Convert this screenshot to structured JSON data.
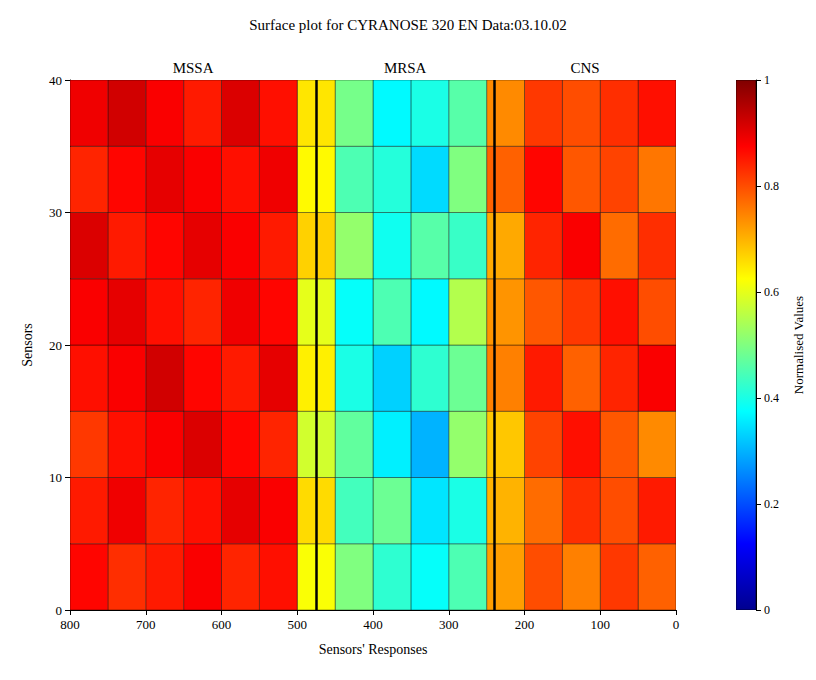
{
  "chart_data": {
    "type": "heatmap",
    "title": "Surface plot for CYRANOSE 320 EN Data:03.10.02",
    "x_label": "Sensors' Responses",
    "y_label": "Sensors",
    "x_bins": [
      0,
      50,
      100,
      150,
      200,
      250,
      300,
      350,
      400,
      450,
      500,
      550,
      600,
      650,
      700,
      750,
      800
    ],
    "y_bins": [
      0,
      5,
      10,
      15,
      20,
      25,
      30,
      35,
      40
    ],
    "values": [
      [
        0.78,
        0.82,
        0.75,
        0.8,
        0.72,
        0.45,
        0.38,
        0.42,
        0.5,
        0.62,
        0.86,
        0.84,
        0.88,
        0.85,
        0.83,
        0.87
      ],
      [
        0.85,
        0.8,
        0.83,
        0.77,
        0.7,
        0.4,
        0.35,
        0.48,
        0.44,
        0.66,
        0.88,
        0.9,
        0.86,
        0.84,
        0.89,
        0.85
      ],
      [
        0.74,
        0.79,
        0.86,
        0.81,
        0.68,
        0.52,
        0.3,
        0.36,
        0.47,
        0.58,
        0.84,
        0.87,
        0.91,
        0.88,
        0.86,
        0.82
      ],
      [
        0.88,
        0.84,
        0.78,
        0.85,
        0.75,
        0.48,
        0.42,
        0.33,
        0.4,
        0.64,
        0.9,
        0.85,
        0.87,
        0.92,
        0.88,
        0.86
      ],
      [
        0.8,
        0.86,
        0.82,
        0.79,
        0.73,
        0.55,
        0.37,
        0.45,
        0.38,
        0.6,
        0.87,
        0.89,
        0.84,
        0.86,
        0.9,
        0.88
      ],
      [
        0.83,
        0.77,
        0.88,
        0.84,
        0.71,
        0.43,
        0.46,
        0.39,
        0.52,
        0.67,
        0.85,
        0.88,
        0.9,
        0.87,
        0.85,
        0.91
      ],
      [
        0.76,
        0.81,
        0.79,
        0.87,
        0.78,
        0.5,
        0.34,
        0.41,
        0.45,
        0.63,
        0.89,
        0.86,
        0.88,
        0.9,
        0.87,
        0.84
      ],
      [
        0.86,
        0.83,
        0.8,
        0.82,
        0.74,
        0.46,
        0.4,
        0.37,
        0.49,
        0.65,
        0.86,
        0.91,
        0.85,
        0.88,
        0.92,
        0.89
      ]
    ],
    "xlim": [
      0,
      800
    ],
    "xticks": [
      0,
      100,
      200,
      300,
      400,
      500,
      600,
      700,
      800
    ],
    "ylim": [
      0,
      40
    ],
    "yticks": [
      0,
      10,
      20,
      30,
      40
    ],
    "colorbar": {
      "label": "Normalised Values",
      "range": [
        0,
        1
      ],
      "ticks": [
        0,
        0.2,
        0.4,
        0.6,
        0.8,
        1
      ]
    },
    "annotations": [
      {
        "text": "MSSA",
        "range": [
          475,
          800
        ]
      },
      {
        "text": "MRSA",
        "range": [
          240,
          475
        ]
      },
      {
        "text": "CNS",
        "range": [
          0,
          240
        ]
      }
    ],
    "boundaries": [
      475,
      240
    ]
  }
}
